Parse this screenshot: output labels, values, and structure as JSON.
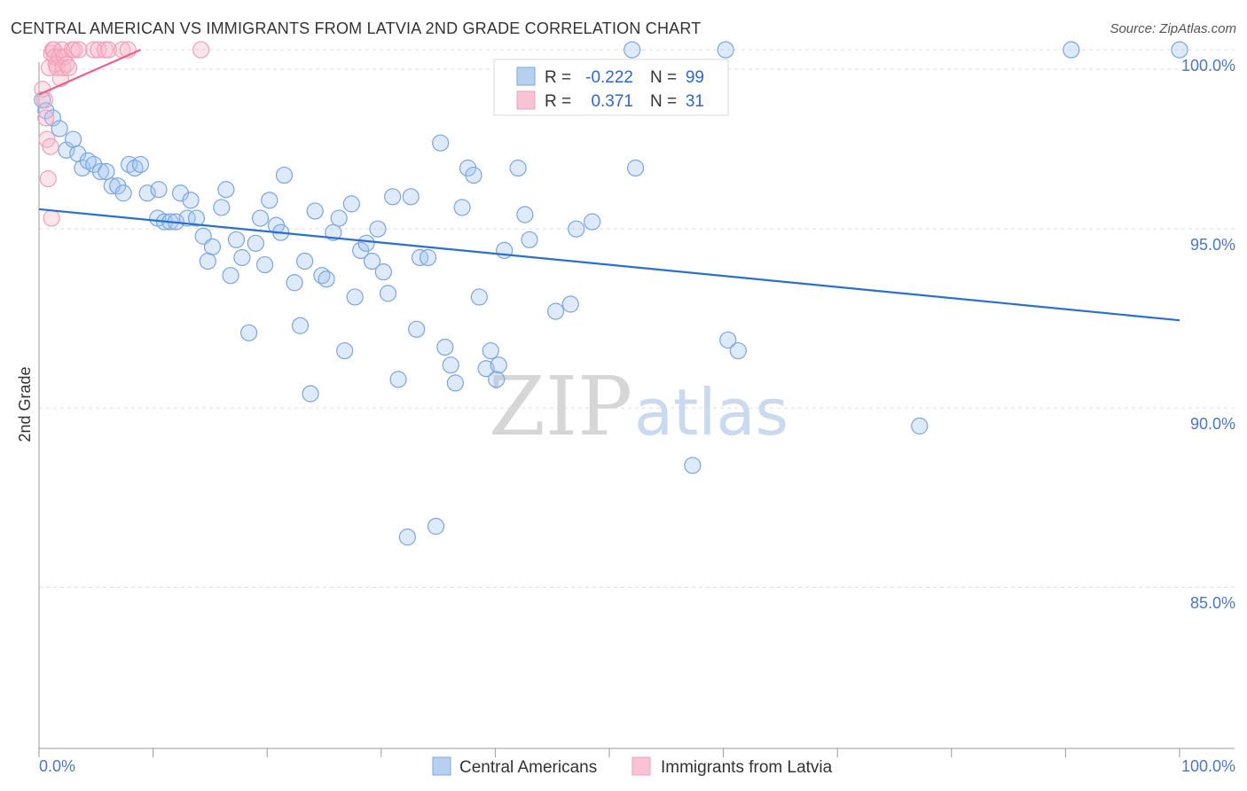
{
  "title": "CENTRAL AMERICAN VS IMMIGRANTS FROM LATVIA 2ND GRADE CORRELATION CHART",
  "source": "Source: ZipAtlas.com",
  "chart_data": {
    "type": "scatter",
    "title": "CENTRAL AMERICAN VS IMMIGRANTS FROM LATVIA 2ND GRADE CORRELATION CHART",
    "xlabel": "",
    "ylabel": "2nd Grade",
    "xlim": [
      0,
      100
    ],
    "ylim": [
      80.5,
      100.4
    ],
    "x_tick_labels": [
      "0.0%",
      "100.0%"
    ],
    "y_ticks": [
      {
        "value": 100,
        "label": "100.0%"
      },
      {
        "value": 95,
        "label": "95.0%"
      },
      {
        "value": 90,
        "label": "90.0%"
      },
      {
        "value": 85,
        "label": "85.0%"
      }
    ],
    "watermark": {
      "zip": "ZIP",
      "atlas": "atlas"
    },
    "legend_stats": [
      {
        "r_label": "R =",
        "r_value": "-0.222",
        "n_label": "N =",
        "n_value": "99"
      },
      {
        "r_label": "R =",
        "r_value": "0.371",
        "n_label": "N =",
        "n_value": "31"
      }
    ],
    "series": [
      {
        "name": "Central Americans",
        "color": "#7aa6e0",
        "line_color": "#2a6fd0",
        "trend": [
          [
            0,
            95.55
          ],
          [
            100,
            92.45
          ]
        ],
        "points": [
          [
            0.3,
            98.6
          ],
          [
            0.6,
            98.3
          ],
          [
            1.2,
            98.1
          ],
          [
            1.8,
            97.8
          ],
          [
            2.4,
            97.2
          ],
          [
            3.0,
            97.5
          ],
          [
            3.4,
            97.1
          ],
          [
            3.8,
            96.7
          ],
          [
            4.3,
            96.9
          ],
          [
            4.8,
            96.8
          ],
          [
            5.4,
            96.6
          ],
          [
            5.9,
            96.6
          ],
          [
            6.4,
            96.2
          ],
          [
            6.9,
            96.2
          ],
          [
            7.4,
            96.0
          ],
          [
            7.9,
            96.8
          ],
          [
            8.4,
            96.7
          ],
          [
            8.9,
            96.8
          ],
          [
            9.5,
            96.0
          ],
          [
            10.4,
            95.3
          ],
          [
            10.5,
            96.1
          ],
          [
            11.0,
            95.2
          ],
          [
            11.5,
            95.2
          ],
          [
            12.0,
            95.2
          ],
          [
            12.4,
            96.0
          ],
          [
            13.0,
            95.3
          ],
          [
            13.3,
            95.8
          ],
          [
            13.8,
            95.3
          ],
          [
            14.4,
            94.8
          ],
          [
            14.8,
            94.1
          ],
          [
            15.2,
            94.5
          ],
          [
            16.0,
            95.6
          ],
          [
            16.4,
            96.1
          ],
          [
            16.8,
            93.7
          ],
          [
            17.3,
            94.7
          ],
          [
            17.8,
            94.2
          ],
          [
            18.4,
            92.1
          ],
          [
            19.0,
            94.6
          ],
          [
            19.4,
            95.3
          ],
          [
            19.8,
            94.0
          ],
          [
            20.2,
            95.8
          ],
          [
            20.8,
            95.1
          ],
          [
            21.2,
            94.9
          ],
          [
            21.5,
            96.5
          ],
          [
            22.4,
            93.5
          ],
          [
            22.9,
            92.3
          ],
          [
            23.3,
            94.1
          ],
          [
            23.8,
            90.4
          ],
          [
            24.2,
            95.5
          ],
          [
            24.8,
            93.7
          ],
          [
            25.2,
            93.6
          ],
          [
            25.8,
            94.9
          ],
          [
            26.3,
            95.3
          ],
          [
            26.8,
            91.6
          ],
          [
            27.4,
            95.7
          ],
          [
            27.7,
            93.1
          ],
          [
            28.2,
            94.4
          ],
          [
            28.7,
            94.6
          ],
          [
            29.2,
            94.1
          ],
          [
            29.7,
            95.0
          ],
          [
            30.2,
            93.8
          ],
          [
            30.6,
            93.2
          ],
          [
            31.0,
            95.9
          ],
          [
            31.5,
            90.8
          ],
          [
            32.3,
            86.4
          ],
          [
            32.6,
            95.9
          ],
          [
            33.1,
            92.2
          ],
          [
            33.4,
            94.2
          ],
          [
            34.1,
            94.2
          ],
          [
            34.8,
            86.7
          ],
          [
            35.2,
            97.4
          ],
          [
            35.6,
            91.7
          ],
          [
            36.1,
            91.2
          ],
          [
            36.5,
            90.7
          ],
          [
            37.1,
            95.6
          ],
          [
            37.6,
            96.7
          ],
          [
            38.1,
            96.5
          ],
          [
            38.6,
            93.1
          ],
          [
            39.2,
            91.1
          ],
          [
            39.6,
            91.6
          ],
          [
            40.1,
            90.8
          ],
          [
            40.3,
            91.2
          ],
          [
            40.8,
            94.4
          ],
          [
            42.0,
            96.7
          ],
          [
            42.6,
            95.4
          ],
          [
            43.0,
            94.7
          ],
          [
            45.3,
            92.7
          ],
          [
            46.6,
            92.9
          ],
          [
            47.1,
            95.0
          ],
          [
            48.5,
            95.2
          ],
          [
            52.0,
            100.0
          ],
          [
            52.3,
            96.7
          ],
          [
            57.3,
            88.4
          ],
          [
            60.2,
            100.0
          ],
          [
            60.4,
            91.9
          ],
          [
            61.3,
            91.6
          ],
          [
            77.2,
            89.5
          ],
          [
            90.5,
            100.0
          ],
          [
            100.0,
            100.0
          ]
        ]
      },
      {
        "name": "Immigrants from Latvia",
        "color": "#f0a0b8",
        "line_color": "#e8608a",
        "trend": [
          [
            0,
            98.75
          ],
          [
            8.9,
            100.0
          ]
        ],
        "points": [
          [
            0.3,
            98.9
          ],
          [
            0.5,
            98.6
          ],
          [
            0.6,
            98.1
          ],
          [
            0.7,
            97.5
          ],
          [
            0.8,
            96.4
          ],
          [
            0.9,
            99.5
          ],
          [
            1.0,
            97.3
          ],
          [
            1.1,
            95.3
          ],
          [
            1.1,
            99.9
          ],
          [
            1.2,
            100.0
          ],
          [
            1.3,
            100.0
          ],
          [
            1.4,
            99.8
          ],
          [
            1.5,
            99.6
          ],
          [
            1.6,
            99.5
          ],
          [
            1.8,
            99.8
          ],
          [
            1.9,
            99.2
          ],
          [
            2.0,
            100.0
          ],
          [
            2.1,
            99.5
          ],
          [
            2.2,
            99.8
          ],
          [
            2.4,
            99.6
          ],
          [
            2.6,
            99.5
          ],
          [
            2.9,
            100.0
          ],
          [
            3.1,
            100.0
          ],
          [
            3.5,
            100.0
          ],
          [
            4.8,
            100.0
          ],
          [
            5.2,
            100.0
          ],
          [
            5.8,
            100.0
          ],
          [
            6.1,
            100.0
          ],
          [
            7.3,
            100.0
          ],
          [
            7.8,
            100.0
          ],
          [
            14.2,
            100.0
          ]
        ]
      }
    ]
  }
}
